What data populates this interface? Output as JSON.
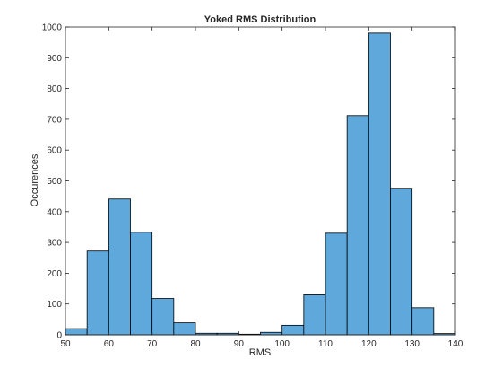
{
  "chart_data": {
    "type": "bar",
    "subtype": "histogram",
    "title": "Yoked RMS Distribution",
    "xlabel": "RMS",
    "ylabel": "Occurences",
    "xlim": [
      50,
      140
    ],
    "ylim": [
      0,
      1000
    ],
    "xticks": [
      50,
      60,
      70,
      80,
      90,
      100,
      110,
      120,
      130,
      140
    ],
    "yticks": [
      0,
      100,
      200,
      300,
      400,
      500,
      600,
      700,
      800,
      900,
      1000
    ],
    "grid": false,
    "bar_color": "#5ea8dc",
    "edge_color": "#000000",
    "bins": [
      {
        "x0": 50,
        "x1": 55,
        "value": 20
      },
      {
        "x0": 55,
        "x1": 60,
        "value": 272
      },
      {
        "x0": 60,
        "x1": 65,
        "value": 441
      },
      {
        "x0": 65,
        "x1": 70,
        "value": 333
      },
      {
        "x0": 70,
        "x1": 75,
        "value": 118
      },
      {
        "x0": 75,
        "x1": 80,
        "value": 39
      },
      {
        "x0": 80,
        "x1": 85,
        "value": 5
      },
      {
        "x0": 85,
        "x1": 90,
        "value": 5
      },
      {
        "x0": 90,
        "x1": 95,
        "value": 2
      },
      {
        "x0": 95,
        "x1": 100,
        "value": 8
      },
      {
        "x0": 100,
        "x1": 105,
        "value": 31
      },
      {
        "x0": 105,
        "x1": 110,
        "value": 130
      },
      {
        "x0": 110,
        "x1": 115,
        "value": 330
      },
      {
        "x0": 115,
        "x1": 120,
        "value": 712
      },
      {
        "x0": 120,
        "x1": 125,
        "value": 980
      },
      {
        "x0": 125,
        "x1": 130,
        "value": 476
      },
      {
        "x0": 130,
        "x1": 135,
        "value": 88
      },
      {
        "x0": 135,
        "x1": 140,
        "value": 4
      }
    ]
  }
}
